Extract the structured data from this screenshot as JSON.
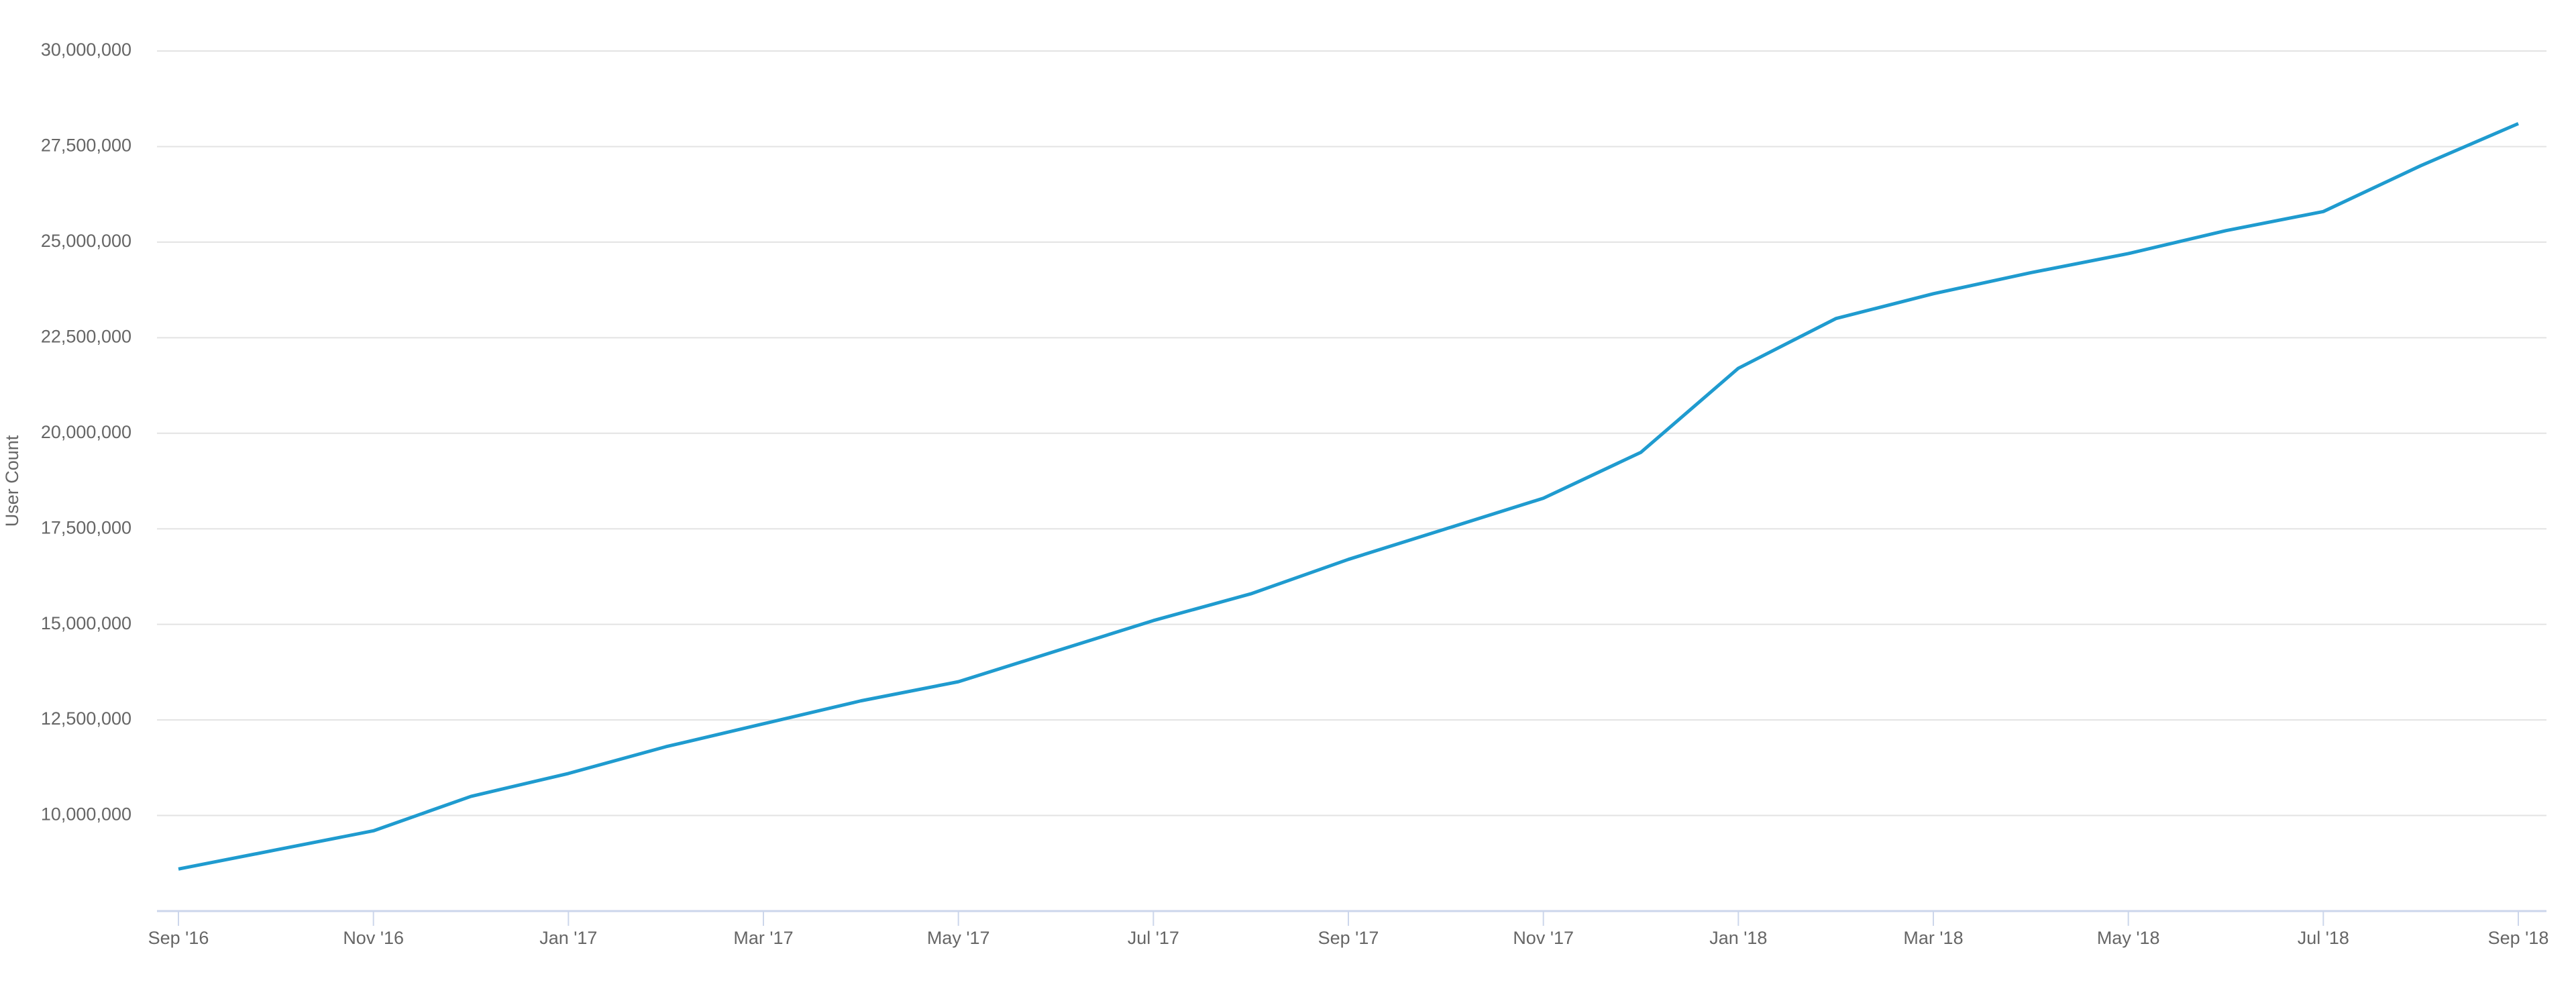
{
  "chart_data": {
    "type": "line",
    "y_label": "User Count",
    "categories": [
      "Sep '16",
      null,
      "Nov '16",
      null,
      "Jan '17",
      null,
      "Mar '17",
      null,
      "May '17",
      null,
      "Jul '17",
      null,
      "Sep '17",
      null,
      "Nov '17",
      null,
      "Jan '18",
      null,
      "Mar '18",
      null,
      "May '18",
      null,
      "Jul '18",
      null,
      "Sep '18"
    ],
    "series": [
      {
        "name": "User Count",
        "color": "#1f9bcf",
        "values": [
          8600000,
          9100000,
          9600000,
          10500000,
          11100000,
          11800000,
          12400000,
          13000000,
          13500000,
          14300000,
          15100000,
          15800000,
          16700000,
          17500000,
          18300000,
          19500000,
          21700000,
          23000000,
          23650000,
          24200000,
          24700000,
          25300000,
          25800000,
          27000000,
          28100000
        ]
      }
    ],
    "ylim": [
      7500000,
      30000000
    ],
    "yticks": [
      {
        "value": 10000000,
        "label": "10,000,000"
      },
      {
        "value": 12500000,
        "label": "12,500,000"
      },
      {
        "value": 15000000,
        "label": "15,000,000"
      },
      {
        "value": 17500000,
        "label": "17,500,000"
      },
      {
        "value": 20000000,
        "label": "20,000,000"
      },
      {
        "value": 22500000,
        "label": "22,500,000"
      },
      {
        "value": 25000000,
        "label": "25,000,000"
      },
      {
        "value": 27500000,
        "label": "27,500,000"
      },
      {
        "value": 30000000,
        "label": "30,000,000"
      }
    ],
    "grid": true
  }
}
